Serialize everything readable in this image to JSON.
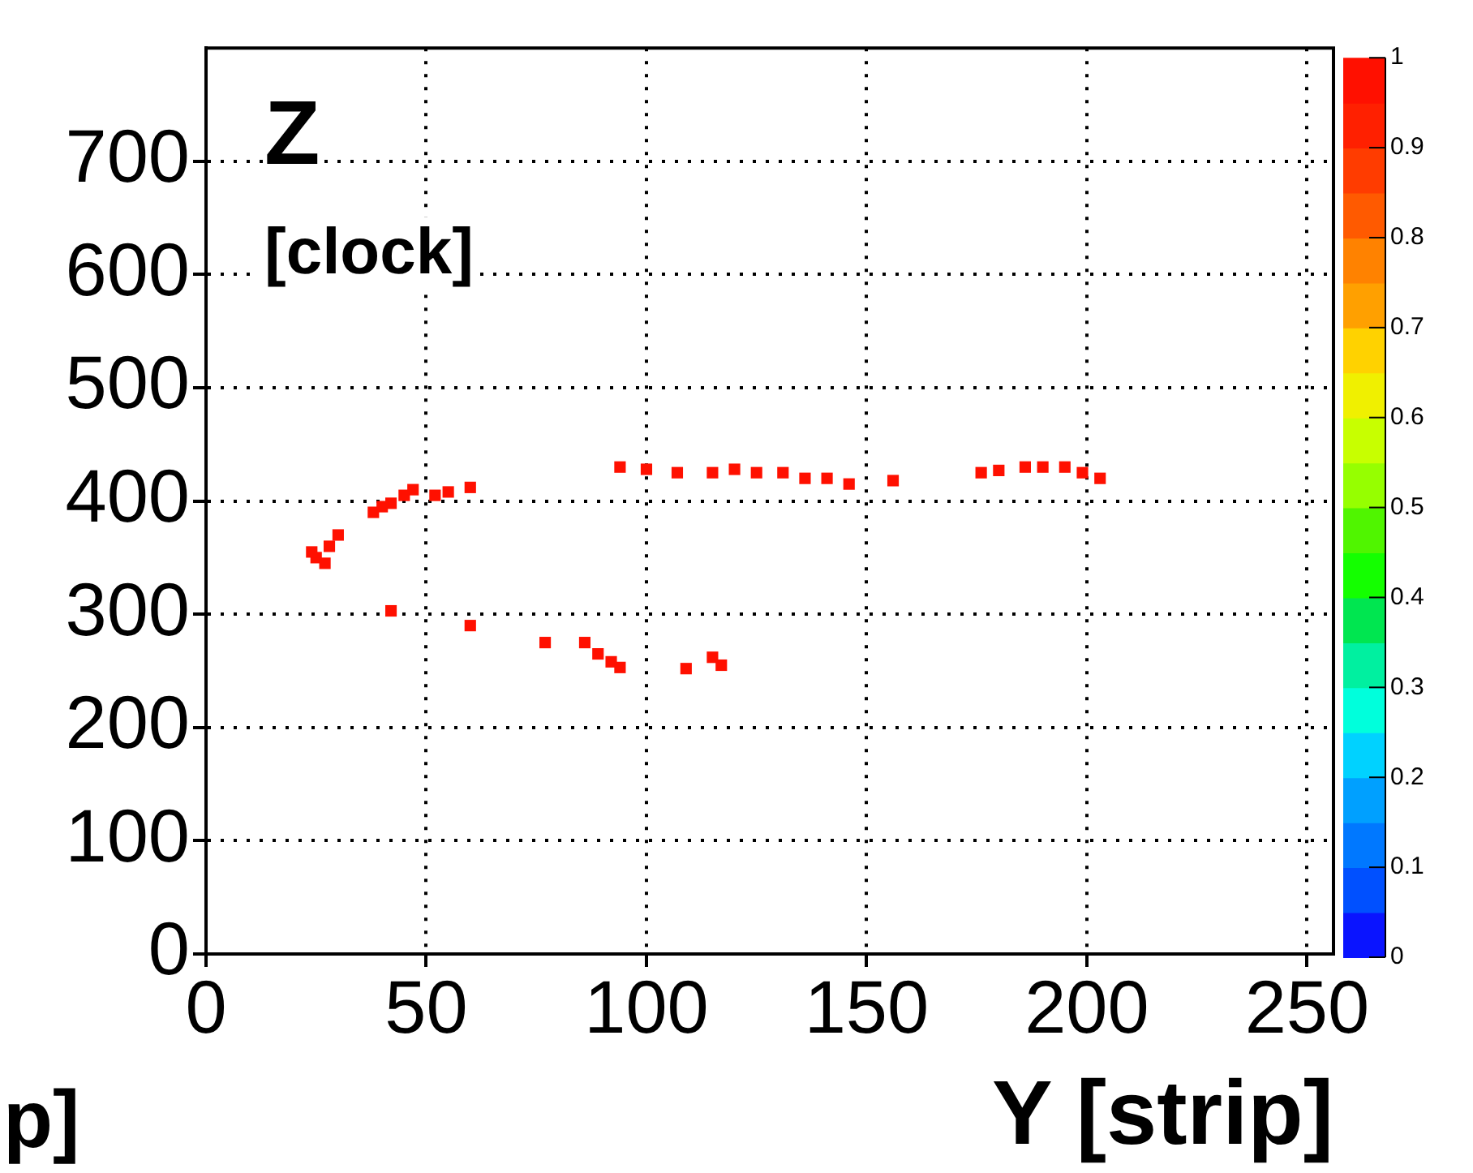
{
  "chart_data": {
    "type": "scatter",
    "title": "Z",
    "subtitle": "[clock]",
    "xlabel": "Y [strip]",
    "annotations": [
      "p]"
    ],
    "series": [
      {
        "x": [
          25,
          28,
          30,
          27,
          24,
          38,
          42,
          45,
          47,
          40,
          52,
          55,
          60,
          42,
          60,
          77,
          86,
          89,
          92,
          94,
          109,
          115,
          117,
          94,
          100,
          107,
          115,
          120,
          125,
          131,
          136,
          141,
          146,
          156,
          176,
          180,
          186,
          190,
          195,
          199,
          203
        ],
        "values": [
          350,
          360,
          370,
          345,
          355,
          390,
          398,
          405,
          410,
          395,
          405,
          408,
          412,
          303,
          290,
          275,
          275,
          265,
          258,
          253,
          252,
          262,
          255,
          430,
          428,
          425,
          425,
          428,
          425,
          425,
          420,
          420,
          415,
          418,
          425,
          427,
          430,
          430,
          430,
          425,
          420
        ],
        "cvalues": [
          1,
          1,
          1,
          1,
          1,
          1,
          1,
          1,
          1,
          1,
          1,
          1,
          1,
          1,
          1,
          1,
          1,
          1,
          1,
          1,
          1,
          1,
          1,
          1,
          1,
          1,
          1,
          1,
          1,
          1,
          1,
          1,
          1,
          1,
          1,
          1,
          1,
          1,
          1,
          1,
          1
        ]
      }
    ],
    "xlim": [
      0,
      256
    ],
    "xticks": [
      0,
      50,
      100,
      150,
      200,
      250
    ],
    "ylim": [
      0,
      800
    ],
    "yticks": [
      0,
      100,
      200,
      300,
      400,
      500,
      600,
      700
    ],
    "clim": [
      0,
      1
    ],
    "cticks": [
      0,
      0.1,
      0.2,
      0.3,
      0.4,
      0.5,
      0.6,
      0.7,
      0.8,
      0.9,
      1
    ],
    "grid": true,
    "marker": "square",
    "legend": false
  }
}
